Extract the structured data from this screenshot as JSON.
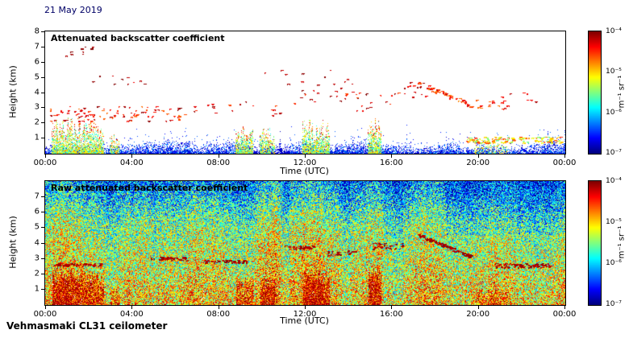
{
  "meta": {
    "date": "21 May 2019",
    "instrument": "Vehmasmaki CL31 ceilometer"
  },
  "colors": {
    "background": "#ffffff",
    "text": "#000000",
    "date_text": "#000066",
    "colormap": "jet"
  },
  "chart_data": [
    {
      "type": "heatmap",
      "title": "Attenuated backscatter coefficient",
      "xlabel": "Time (UTC)",
      "ylabel": "Height (km)",
      "x_range_hours": [
        0,
        24
      ],
      "x_ticks": [
        {
          "hour": 0,
          "label": "00:00"
        },
        {
          "hour": 4,
          "label": "04:00"
        },
        {
          "hour": 8,
          "label": "08:00"
        },
        {
          "hour": 12,
          "label": "12:00"
        },
        {
          "hour": 16,
          "label": "16:00"
        },
        {
          "hour": 20,
          "label": "20:00"
        },
        {
          "hour": 24,
          "label": "00:00"
        }
      ],
      "y_range_km": [
        0,
        8
      ],
      "y_ticks": [
        1,
        2,
        3,
        4,
        5,
        6,
        7,
        8
      ],
      "colorbar": {
        "scale": "log",
        "min": 1e-07,
        "max": 0.0001,
        "tick_labels": [
          "10⁻⁴",
          "10⁻⁵",
          "10⁻⁶",
          "10⁻⁷"
        ],
        "label": "m⁻¹ sr⁻¹"
      },
      "features": {
        "surface_noise_band": {
          "base_height_km": 0.62,
          "variation_km": 0.3,
          "dark_period": {
            "t0": 9.3,
            "t1": 11.3
          },
          "description": "dense blue boundary-layer echo 0-1 km across full day"
        },
        "plumes": [
          {
            "t0": 0.3,
            "t1": 2.7,
            "top_km": 2.4,
            "intensity": "strong"
          },
          {
            "t0": 3.0,
            "t1": 3.4,
            "top_km": 1.4,
            "intensity": "moderate"
          },
          {
            "t0": 8.8,
            "t1": 9.6,
            "top_km": 1.9,
            "intensity": "strong"
          },
          {
            "t0": 9.9,
            "t1": 10.6,
            "top_km": 1.8,
            "intensity": "moderate"
          },
          {
            "t0": 11.9,
            "t1": 13.1,
            "top_km": 2.3,
            "intensity": "strong"
          },
          {
            "t0": 14.9,
            "t1": 15.5,
            "top_km": 2.6,
            "intensity": "strong"
          },
          {
            "t0": 19.8,
            "t1": 21.3,
            "top_km": 1.1,
            "intensity": "weak"
          }
        ],
        "aerosol_layers": [
          {
            "t0": 0.2,
            "t1": 6.2,
            "h0": 2.1,
            "h1": 3.1,
            "density": 0.55,
            "v0": 0.75,
            "v1": 0.98
          },
          {
            "t0": 0.8,
            "t1": 2.3,
            "h0": 6.3,
            "h1": 7.2,
            "density": 0.22,
            "v0": 0.9,
            "v1": 1.0
          },
          {
            "t0": 2.0,
            "t1": 5.2,
            "h0": 4.5,
            "h1": 5.2,
            "density": 0.1,
            "v0": 0.88,
            "v1": 1.0
          },
          {
            "t0": 6.2,
            "t1": 11.2,
            "h0": 2.5,
            "h1": 3.5,
            "density": 0.14,
            "v0": 0.8,
            "v1": 1.0
          },
          {
            "t0": 8.5,
            "t1": 14.6,
            "h0": 4.4,
            "h1": 5.5,
            "density": 0.07,
            "v0": 0.9,
            "v1": 1.0
          },
          {
            "t0": 11.2,
            "t1": 14.2,
            "h0": 3.2,
            "h1": 4.3,
            "density": 0.2,
            "v0": 0.8,
            "v1": 1.0
          },
          {
            "t0": 14.3,
            "t1": 16.3,
            "h0": 2.8,
            "h1": 4.1,
            "density": 0.3,
            "v0": 0.8,
            "v1": 1.0
          },
          {
            "t0": 16.4,
            "t1": 17.6,
            "h0": 3.6,
            "h1": 4.7,
            "density": 0.35,
            "v0": 0.85,
            "v1": 1.0
          },
          {
            "t0": 17.2,
            "t1": 19.7,
            "h0": 4.6,
            "h1": 3.1,
            "density": 0.7,
            "v0": 0.72,
            "v1": 0.95,
            "descending": true
          },
          {
            "t0": 19.6,
            "t1": 21.3,
            "h0": 2.9,
            "h1": 3.5,
            "density": 0.3,
            "v0": 0.75,
            "v1": 0.92
          },
          {
            "t0": 21.0,
            "t1": 22.6,
            "h0": 3.3,
            "h1": 4.0,
            "density": 0.15,
            "v0": 0.8,
            "v1": 0.95
          },
          {
            "t0": 19.4,
            "t1": 23.8,
            "h0": 0.7,
            "h1": 1.1,
            "density": 0.9,
            "v0": 0.45,
            "v1": 0.85
          }
        ]
      }
    },
    {
      "type": "heatmap",
      "title": "Raw attenuated backscatter coefficient",
      "xlabel": "Time (UTC)",
      "ylabel": "Height (km)",
      "x_range_hours": [
        0,
        24
      ],
      "x_ticks": [
        {
          "hour": 0,
          "label": "00:00"
        },
        {
          "hour": 4,
          "label": "04:00"
        },
        {
          "hour": 8,
          "label": "08:00"
        },
        {
          "hour": 12,
          "label": "12:00"
        },
        {
          "hour": 16,
          "label": "16:00"
        },
        {
          "hour": 20,
          "label": "20:00"
        },
        {
          "hour": 24,
          "label": "00:00"
        }
      ],
      "y_range_km": [
        0,
        8
      ],
      "y_ticks": [
        1,
        2,
        3,
        4,
        5,
        6,
        7
      ],
      "colorbar": {
        "scale": "log",
        "min": 1e-07,
        "max": 0.0001,
        "tick_labels": [
          "10⁻⁴",
          "10⁻⁵",
          "10⁻⁶",
          "10⁻⁷"
        ],
        "label": "m⁻¹ sr⁻¹"
      },
      "features": {
        "noise_profile": [
          {
            "h": 0,
            "v": 0.66
          },
          {
            "h": 1,
            "v": 0.63
          },
          {
            "h": 2,
            "v": 0.59
          },
          {
            "h": 3,
            "v": 0.56
          },
          {
            "h": 4,
            "v": 0.53
          },
          {
            "h": 5,
            "v": 0.49
          },
          {
            "h": 6,
            "v": 0.41
          },
          {
            "h": 7,
            "v": 0.31
          },
          {
            "h": 8,
            "v": 0.24
          }
        ],
        "noise_amplitude": 0.28,
        "white_speckle_probability": 0.012,
        "warm_stripes": [
          {
            "t0": 0.3,
            "t1": 2.8,
            "dv": 0.05
          },
          {
            "t0": 4.8,
            "t1": 7.3,
            "dv": 0.03
          },
          {
            "t0": 9.5,
            "t1": 15.5,
            "dv": 0.03
          },
          {
            "t0": 9.7,
            "t1": 10.7,
            "dv": 0.04
          },
          {
            "t0": 11.8,
            "t1": 13.2,
            "dv": 0.06
          },
          {
            "t0": 14.8,
            "t1": 15.6,
            "dv": 0.05
          },
          {
            "t0": 16.8,
            "t1": 18.3,
            "dv": 0.04
          }
        ],
        "cool_stripes": [
          {
            "t0": 10.85,
            "t1": 11.25,
            "dv": -0.1
          },
          {
            "t0": 13.55,
            "t1": 14.05,
            "dv": -0.08
          },
          {
            "t0": 16.05,
            "t1": 16.5,
            "dv": -0.07
          },
          {
            "t0": 23.0,
            "t1": 24.0,
            "dv": -0.05
          }
        ],
        "plumes": [
          {
            "t0": 0.3,
            "t1": 2.7,
            "top_km": 2.4,
            "intensity": "strong"
          },
          {
            "t0": 3.0,
            "t1": 3.4,
            "top_km": 1.4,
            "intensity": "moderate"
          },
          {
            "t0": 8.8,
            "t1": 9.6,
            "top_km": 1.9,
            "intensity": "strong"
          },
          {
            "t0": 9.9,
            "t1": 10.6,
            "top_km": 1.8,
            "intensity": "moderate"
          },
          {
            "t0": 11.9,
            "t1": 13.1,
            "top_km": 2.3,
            "intensity": "strong"
          },
          {
            "t0": 14.9,
            "t1": 15.5,
            "top_km": 2.6,
            "intensity": "strong"
          },
          {
            "t0": 19.8,
            "t1": 21.3,
            "top_km": 1.1,
            "intensity": "weak"
          }
        ],
        "streaks": [
          {
            "t0": 0.3,
            "t1": 2.6,
            "h0": 2.5,
            "h1": 2.7,
            "density": 0.5
          },
          {
            "t0": 4.8,
            "t1": 6.6,
            "h0": 2.9,
            "h1": 3.1,
            "density": 0.5
          },
          {
            "t0": 7.3,
            "t1": 9.3,
            "h0": 2.7,
            "h1": 2.9,
            "density": 0.5
          },
          {
            "t0": 11.0,
            "t1": 12.4,
            "h0": 3.6,
            "h1": 3.8,
            "density": 0.45
          },
          {
            "t0": 13.0,
            "t1": 14.3,
            "h0": 3.2,
            "h1": 3.5,
            "density": 0.45
          },
          {
            "t0": 15.1,
            "t1": 16.5,
            "h0": 3.6,
            "h1": 4.0,
            "density": 0.5
          },
          {
            "t0": 17.2,
            "t1": 19.7,
            "h0": 4.5,
            "h1": 3.1,
            "density": 0.85,
            "descending": true
          },
          {
            "t0": 20.7,
            "t1": 23.3,
            "h0": 2.4,
            "h1": 2.7,
            "density": 0.6
          }
        ]
      }
    }
  ]
}
